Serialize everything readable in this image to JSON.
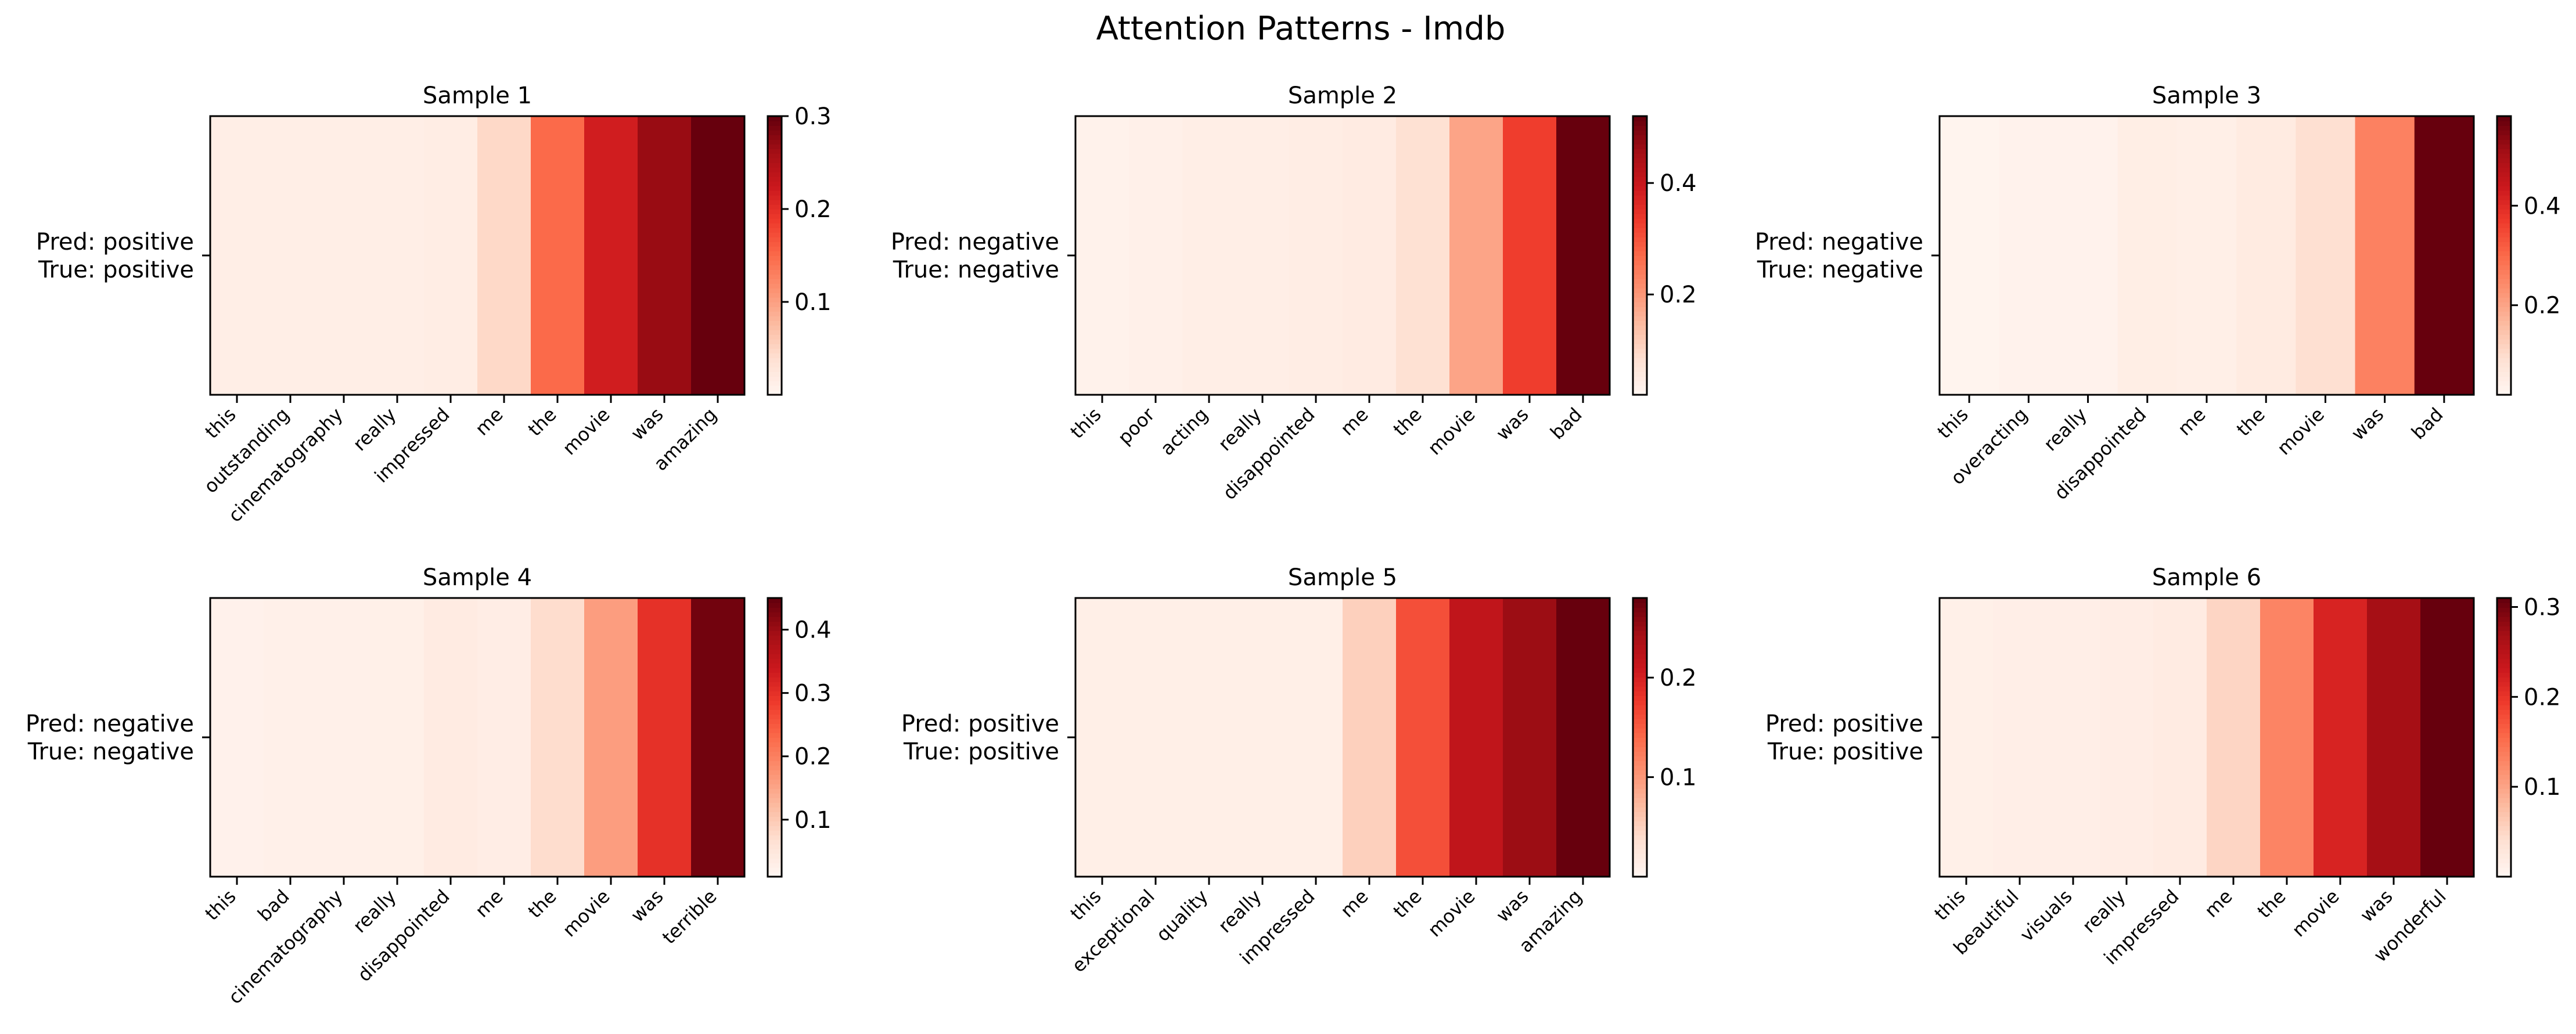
{
  "title": "Attention Patterns - Imdb",
  "chart_data": [
    {
      "type": "heatmap",
      "title": "Sample 1",
      "row_label": [
        "Pred: positive",
        "True: positive"
      ],
      "tokens": [
        "this",
        "outstanding",
        "cinematography",
        "really",
        "impressed",
        "me",
        "the",
        "movie",
        "was",
        "amazing"
      ],
      "values": [
        0.012,
        0.012,
        0.012,
        0.012,
        0.015,
        0.045,
        0.15,
        0.22,
        0.27,
        0.3
      ],
      "colorbar": {
        "min": 0.0,
        "max": 0.3,
        "ticks": [
          0.1,
          0.2,
          0.3
        ]
      }
    },
    {
      "type": "heatmap",
      "title": "Sample 2",
      "row_label": [
        "Pred: negative",
        "True: negative"
      ],
      "tokens": [
        "this",
        "poor",
        "acting",
        "really",
        "disappointed",
        "me",
        "the",
        "movie",
        "was",
        "bad"
      ],
      "values": [
        0.03,
        0.035,
        0.04,
        0.04,
        0.045,
        0.05,
        0.08,
        0.18,
        0.33,
        0.52
      ],
      "colorbar": {
        "min": 0.02,
        "max": 0.52,
        "ticks": [
          0.2,
          0.4
        ]
      }
    },
    {
      "type": "heatmap",
      "title": "Sample 3",
      "row_label": [
        "Pred: negative",
        "True: negative"
      ],
      "tokens": [
        "this",
        "overacting",
        "really",
        "disappointed",
        "me",
        "the",
        "movie",
        "was",
        "bad"
      ],
      "values": [
        0.025,
        0.03,
        0.03,
        0.045,
        0.04,
        0.055,
        0.09,
        0.26,
        0.58
      ],
      "colorbar": {
        "min": 0.02,
        "max": 0.58,
        "ticks": [
          0.2,
          0.4
        ]
      }
    },
    {
      "type": "heatmap",
      "title": "Sample 4",
      "row_label": [
        "Pred: negative",
        "True: negative"
      ],
      "tokens": [
        "this",
        "bad",
        "cinematography",
        "really",
        "disappointed",
        "me",
        "the",
        "movie",
        "was",
        "terrible"
      ],
      "values": [
        0.02,
        0.022,
        0.022,
        0.024,
        0.035,
        0.03,
        0.07,
        0.16,
        0.3,
        0.44
      ],
      "colorbar": {
        "min": 0.01,
        "max": 0.45,
        "ticks": [
          0.1,
          0.2,
          0.3,
          0.4
        ]
      }
    },
    {
      "type": "heatmap",
      "title": "Sample 5",
      "row_label": [
        "Pred: positive",
        "True: positive"
      ],
      "tokens": [
        "this",
        "exceptional",
        "quality",
        "really",
        "impressed",
        "me",
        "the",
        "movie",
        "was",
        "amazing"
      ],
      "values": [
        0.01,
        0.01,
        0.01,
        0.01,
        0.01,
        0.05,
        0.16,
        0.22,
        0.25,
        0.28
      ],
      "colorbar": {
        "min": 0.0,
        "max": 0.28,
        "ticks": [
          0.1,
          0.2
        ]
      }
    },
    {
      "type": "heatmap",
      "title": "Sample 6",
      "row_label": [
        "Pred: positive",
        "True: positive"
      ],
      "tokens": [
        "this",
        "beautiful",
        "visuals",
        "really",
        "impressed",
        "me",
        "the",
        "movie",
        "was",
        "wonderful"
      ],
      "values": [
        0.01,
        0.012,
        0.012,
        0.014,
        0.018,
        0.05,
        0.13,
        0.22,
        0.27,
        0.31
      ],
      "colorbar": {
        "min": 0.0,
        "max": 0.31,
        "ticks": [
          0.1,
          0.2,
          0.3
        ]
      }
    }
  ]
}
